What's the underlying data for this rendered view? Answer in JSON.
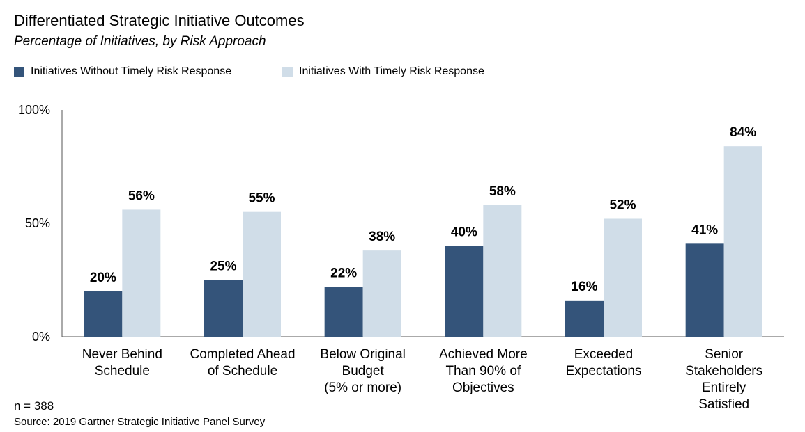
{
  "title": "Differentiated Strategic Initiative Outcomes",
  "subtitle": "Percentage of Initiatives, by Risk Approach",
  "footnote": "n = 388",
  "source": "Source: 2019 Gartner Strategic Initiative Panel Survey",
  "colors": {
    "without": "#34547a",
    "with": "#d0dde8",
    "axis": "#555555"
  },
  "chart_data": {
    "type": "bar",
    "title": "Differentiated Strategic Initiative Outcomes",
    "subtitle": "Percentage of Initiatives, by Risk Approach",
    "xlabel": "",
    "ylabel": "",
    "ylim": [
      0,
      100
    ],
    "yticks": [
      0,
      50,
      100
    ],
    "ytick_labels": [
      "0%",
      "50%",
      "100%"
    ],
    "legend_position": "top-left",
    "grid": false,
    "categories": [
      [
        "Never Behind",
        "Schedule"
      ],
      [
        "Completed Ahead",
        "of Schedule"
      ],
      [
        "Below Original",
        "Budget",
        "(5% or more)"
      ],
      [
        "Achieved More",
        "Than 90% of",
        "Objectives"
      ],
      [
        "Exceeded",
        "Expectations"
      ],
      [
        "Senior",
        "Stakeholders",
        "Entirely",
        "Satisfied"
      ]
    ],
    "series": [
      {
        "name": "Initiatives Without Timely Risk Response",
        "values": [
          20,
          25,
          22,
          40,
          16,
          41
        ],
        "labels": [
          "20%",
          "25%",
          "22%",
          "40%",
          "16%",
          "41%"
        ]
      },
      {
        "name": "Initiatives With Timely Risk Response",
        "values": [
          56,
          55,
          38,
          58,
          52,
          84
        ],
        "labels": [
          "56%",
          "55%",
          "38%",
          "58%",
          "52%",
          "84%"
        ]
      }
    ]
  }
}
